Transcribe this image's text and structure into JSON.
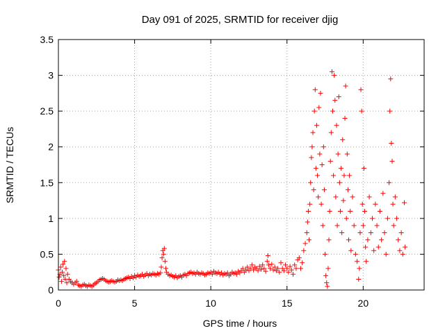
{
  "chart_data": {
    "type": "scatter",
    "title": "Day 091 of 2025, SRMTID for receiver djig",
    "xlabel": "GPS time / hours",
    "ylabel": "SRMTID / TECUs",
    "xlim": [
      0,
      24
    ],
    "ylim": [
      0,
      3.5
    ],
    "xticks": [
      0,
      5,
      10,
      15,
      20
    ],
    "xtick_labels": [
      "0",
      "5",
      "10",
      "15",
      "20"
    ],
    "yticks": [
      0,
      0.5,
      1,
      1.5,
      2,
      2.5,
      3,
      3.5
    ],
    "ytick_labels": [
      "0",
      "0.5",
      "1",
      "1.5",
      "2",
      "2.5",
      "3",
      "3.5"
    ],
    "grid": true,
    "marker": "+",
    "color": "#ff0000",
    "series": [
      {
        "name": "SRMTID",
        "points": [
          [
            0.0,
            0.28
          ],
          [
            0.05,
            0.18
          ],
          [
            0.1,
            0.22
          ],
          [
            0.15,
            0.32
          ],
          [
            0.2,
            0.12
          ],
          [
            0.25,
            0.25
          ],
          [
            0.3,
            0.36
          ],
          [
            0.35,
            0.2
          ],
          [
            0.4,
            0.4
          ],
          [
            0.45,
            0.15
          ],
          [
            0.5,
            0.3
          ],
          [
            0.55,
            0.1
          ],
          [
            0.6,
            0.22
          ],
          [
            0.7,
            0.15
          ],
          [
            0.8,
            0.12
          ],
          [
            0.9,
            0.1
          ],
          [
            1.0,
            0.08
          ],
          [
            1.1,
            0.1
          ],
          [
            1.2,
            0.12
          ],
          [
            1.3,
            0.07
          ],
          [
            1.4,
            0.06
          ],
          [
            1.5,
            0.05
          ],
          [
            1.6,
            0.07
          ],
          [
            1.7,
            0.08
          ],
          [
            1.8,
            0.06
          ],
          [
            1.9,
            0.05
          ],
          [
            2.0,
            0.07
          ],
          [
            2.1,
            0.06
          ],
          [
            2.2,
            0.05
          ],
          [
            2.3,
            0.07
          ],
          [
            2.4,
            0.09
          ],
          [
            2.5,
            0.1
          ],
          [
            2.6,
            0.12
          ],
          [
            2.7,
            0.14
          ],
          [
            2.8,
            0.15
          ],
          [
            2.9,
            0.16
          ],
          [
            3.0,
            0.15
          ],
          [
            3.1,
            0.13
          ],
          [
            3.2,
            0.12
          ],
          [
            3.3,
            0.11
          ],
          [
            3.4,
            0.12
          ],
          [
            3.5,
            0.13
          ],
          [
            3.6,
            0.12
          ],
          [
            3.7,
            0.11
          ],
          [
            3.8,
            0.12
          ],
          [
            3.9,
            0.14
          ],
          [
            4.0,
            0.13
          ],
          [
            4.1,
            0.14
          ],
          [
            4.2,
            0.13
          ],
          [
            4.3,
            0.15
          ],
          [
            4.4,
            0.16
          ],
          [
            4.5,
            0.17
          ],
          [
            4.6,
            0.18
          ],
          [
            4.7,
            0.16
          ],
          [
            4.8,
            0.19
          ],
          [
            4.9,
            0.17
          ],
          [
            5.0,
            0.2
          ],
          [
            5.1,
            0.18
          ],
          [
            5.2,
            0.21
          ],
          [
            5.3,
            0.19
          ],
          [
            5.4,
            0.2
          ],
          [
            5.5,
            0.22
          ],
          [
            5.6,
            0.19
          ],
          [
            5.7,
            0.21
          ],
          [
            5.8,
            0.23
          ],
          [
            5.9,
            0.2
          ],
          [
            6.0,
            0.22
          ],
          [
            6.1,
            0.21
          ],
          [
            6.2,
            0.23
          ],
          [
            6.3,
            0.22
          ],
          [
            6.4,
            0.21
          ],
          [
            6.5,
            0.23
          ],
          [
            6.6,
            0.22
          ],
          [
            6.7,
            0.24
          ],
          [
            6.75,
            0.32
          ],
          [
            6.8,
            0.45
          ],
          [
            6.85,
            0.55
          ],
          [
            6.9,
            0.5
          ],
          [
            6.95,
            0.58
          ],
          [
            7.0,
            0.4
          ],
          [
            7.05,
            0.3
          ],
          [
            7.1,
            0.25
          ],
          [
            7.2,
            0.22
          ],
          [
            7.3,
            0.2
          ],
          [
            7.4,
            0.21
          ],
          [
            7.5,
            0.19
          ],
          [
            7.6,
            0.18
          ],
          [
            7.7,
            0.2
          ],
          [
            7.8,
            0.17
          ],
          [
            7.9,
            0.19
          ],
          [
            8.0,
            0.2
          ],
          [
            8.1,
            0.18
          ],
          [
            8.2,
            0.21
          ],
          [
            8.3,
            0.22
          ],
          [
            8.4,
            0.2
          ],
          [
            8.5,
            0.23
          ],
          [
            8.6,
            0.24
          ],
          [
            8.7,
            0.25
          ],
          [
            8.8,
            0.23
          ],
          [
            8.9,
            0.24
          ],
          [
            9.0,
            0.22
          ],
          [
            9.1,
            0.25
          ],
          [
            9.2,
            0.23
          ],
          [
            9.3,
            0.22
          ],
          [
            9.4,
            0.24
          ],
          [
            9.5,
            0.23
          ],
          [
            9.6,
            0.21
          ],
          [
            9.7,
            0.22
          ],
          [
            9.8,
            0.24
          ],
          [
            9.9,
            0.23
          ],
          [
            10.0,
            0.25
          ],
          [
            10.1,
            0.22
          ],
          [
            10.2,
            0.26
          ],
          [
            10.3,
            0.24
          ],
          [
            10.4,
            0.23
          ],
          [
            10.5,
            0.25
          ],
          [
            10.6,
            0.22
          ],
          [
            10.7,
            0.24
          ],
          [
            10.8,
            0.21
          ],
          [
            10.9,
            0.23
          ],
          [
            11.0,
            0.22
          ],
          [
            11.1,
            0.24
          ],
          [
            11.2,
            0.2
          ],
          [
            11.3,
            0.22
          ],
          [
            11.4,
            0.25
          ],
          [
            11.5,
            0.23
          ],
          [
            11.6,
            0.24
          ],
          [
            11.7,
            0.22
          ],
          [
            11.8,
            0.26
          ],
          [
            11.9,
            0.24
          ],
          [
            12.0,
            0.27
          ],
          [
            12.1,
            0.3
          ],
          [
            12.2,
            0.25
          ],
          [
            12.3,
            0.28
          ],
          [
            12.4,
            0.32
          ],
          [
            12.5,
            0.27
          ],
          [
            12.6,
            0.3
          ],
          [
            12.7,
            0.35
          ],
          [
            12.8,
            0.28
          ],
          [
            12.9,
            0.32
          ],
          [
            13.0,
            0.3
          ],
          [
            13.1,
            0.27
          ],
          [
            13.2,
            0.33
          ],
          [
            13.3,
            0.29
          ],
          [
            13.4,
            0.35
          ],
          [
            13.5,
            0.3
          ],
          [
            13.6,
            0.26
          ],
          [
            13.7,
            0.4
          ],
          [
            13.75,
            0.48
          ],
          [
            13.8,
            0.35
          ],
          [
            13.9,
            0.3
          ],
          [
            14.0,
            0.36
          ],
          [
            14.1,
            0.28
          ],
          [
            14.2,
            0.32
          ],
          [
            14.3,
            0.27
          ],
          [
            14.4,
            0.3
          ],
          [
            14.5,
            0.25
          ],
          [
            14.6,
            0.38
          ],
          [
            14.7,
            0.3
          ],
          [
            14.8,
            0.27
          ],
          [
            14.9,
            0.35
          ],
          [
            15.0,
            0.3
          ],
          [
            15.1,
            0.25
          ],
          [
            15.2,
            0.33
          ],
          [
            15.3,
            0.28
          ],
          [
            15.4,
            0.22
          ],
          [
            15.5,
            0.35
          ],
          [
            15.6,
            0.3
          ],
          [
            15.7,
            0.42
          ],
          [
            15.8,
            0.45
          ],
          [
            15.9,
            0.3
          ],
          [
            16.0,
            0.38
          ],
          [
            16.1,
            0.55
          ],
          [
            16.2,
            0.65
          ],
          [
            16.3,
            0.8
          ],
          [
            16.35,
            0.95
          ],
          [
            16.4,
            1.1
          ],
          [
            16.45,
            0.7
          ],
          [
            16.5,
            1.2
          ],
          [
            16.55,
            1.5
          ],
          [
            16.6,
            1.85
          ],
          [
            16.65,
            2.0
          ],
          [
            16.7,
            2.2
          ],
          [
            16.75,
            1.4
          ],
          [
            16.8,
            2.5
          ],
          [
            16.85,
            2.8
          ],
          [
            16.9,
            1.7
          ],
          [
            16.95,
            2.3
          ],
          [
            17.0,
            1.6
          ],
          [
            17.05,
            1.3
          ],
          [
            17.1,
            2.55
          ],
          [
            17.15,
            1.9
          ],
          [
            17.2,
            2.75
          ],
          [
            17.25,
            1.2
          ],
          [
            17.3,
            1.75
          ],
          [
            17.35,
            0.9
          ],
          [
            17.4,
            2.0
          ],
          [
            17.45,
            1.4
          ],
          [
            17.5,
            0.5
          ],
          [
            17.55,
            0.2
          ],
          [
            17.6,
            0.1
          ],
          [
            17.65,
            0.05
          ],
          [
            17.7,
            0.3
          ],
          [
            17.75,
            0.7
          ],
          [
            17.8,
            1.1
          ],
          [
            17.85,
            1.8
          ],
          [
            17.9,
            2.2
          ],
          [
            17.95,
            3.05
          ],
          [
            18.0,
            2.5
          ],
          [
            18.05,
            1.6
          ],
          [
            18.1,
            3.0
          ],
          [
            18.15,
            2.65
          ],
          [
            18.2,
            1.3
          ],
          [
            18.25,
            2.3
          ],
          [
            18.3,
            0.9
          ],
          [
            18.35,
            1.9
          ],
          [
            18.4,
            2.7
          ],
          [
            18.45,
            1.5
          ],
          [
            18.5,
            1.1
          ],
          [
            18.55,
            1.7
          ],
          [
            18.6,
            0.8
          ],
          [
            18.65,
            2.1
          ],
          [
            18.7,
            1.25
          ],
          [
            18.75,
            1.6
          ],
          [
            18.8,
            2.4
          ],
          [
            18.85,
            2.85
          ],
          [
            18.9,
            1.0
          ],
          [
            18.95,
            1.9
          ],
          [
            19.0,
            1.4
          ],
          [
            19.05,
            0.7
          ],
          [
            19.1,
            1.6
          ],
          [
            19.15,
            1.1
          ],
          [
            19.2,
            0.55
          ],
          [
            19.3,
            1.3
          ],
          [
            19.4,
            0.9
          ],
          [
            19.5,
            0.5
          ],
          [
            19.6,
            0.4
          ],
          [
            19.7,
            0.15
          ],
          [
            19.75,
            0.3
          ],
          [
            19.8,
            0.8
          ],
          [
            19.85,
            2.8
          ],
          [
            19.9,
            2.5
          ],
          [
            19.95,
            1.2
          ],
          [
            20.0,
            0.9
          ],
          [
            20.05,
            1.7
          ],
          [
            20.1,
            1.1
          ],
          [
            20.15,
            0.6
          ],
          [
            20.2,
            0.4
          ],
          [
            20.3,
            0.7
          ],
          [
            20.4,
            1.3
          ],
          [
            20.5,
            0.8
          ],
          [
            20.6,
            1.0
          ],
          [
            20.7,
            0.55
          ],
          [
            20.8,
            1.2
          ],
          [
            20.9,
            0.9
          ],
          [
            21.0,
            0.6
          ],
          [
            21.1,
            1.1
          ],
          [
            21.2,
            0.7
          ],
          [
            21.3,
            1.35
          ],
          [
            21.4,
            0.8
          ],
          [
            21.5,
            0.5
          ],
          [
            21.6,
            1.0
          ],
          [
            21.7,
            1.5
          ],
          [
            21.75,
            2.5
          ],
          [
            21.8,
            2.95
          ],
          [
            21.85,
            2.05
          ],
          [
            21.9,
            1.8
          ],
          [
            21.95,
            1.2
          ],
          [
            22.0,
            0.9
          ],
          [
            22.1,
            1.3
          ],
          [
            22.2,
            1.0
          ],
          [
            22.3,
            0.7
          ],
          [
            22.4,
            0.55
          ],
          [
            22.5,
            0.8
          ],
          [
            22.6,
            0.5
          ],
          [
            22.7,
            1.22
          ],
          [
            22.75,
            0.6
          ]
        ]
      }
    ]
  }
}
